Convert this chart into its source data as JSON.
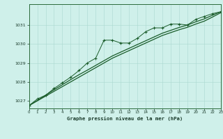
{
  "title": "Graphe pression niveau de la mer (hPa)",
  "background_color": "#cff0ea",
  "grid_color": "#aad8d0",
  "line_color": "#1a5c2a",
  "x_min": 0,
  "x_max": 23,
  "y_min": 1026.6,
  "y_max": 1032.1,
  "yticks": [
    1027,
    1028,
    1029,
    1030,
    1031
  ],
  "xticks": [
    0,
    1,
    2,
    3,
    4,
    5,
    6,
    7,
    8,
    9,
    10,
    11,
    12,
    13,
    14,
    15,
    16,
    17,
    18,
    19,
    20,
    21,
    22,
    23
  ],
  "series_main": [
    [
      0,
      1026.75
    ],
    [
      1,
      1027.1
    ],
    [
      2,
      1027.3
    ],
    [
      3,
      1027.65
    ],
    [
      4,
      1027.95
    ],
    [
      5,
      1028.25
    ],
    [
      6,
      1028.6
    ],
    [
      7,
      1029.0
    ],
    [
      8,
      1029.25
    ],
    [
      9,
      1030.2
    ],
    [
      10,
      1030.2
    ],
    [
      11,
      1030.05
    ],
    [
      12,
      1030.05
    ],
    [
      13,
      1030.3
    ],
    [
      14,
      1030.65
    ],
    [
      15,
      1030.85
    ],
    [
      16,
      1030.85
    ],
    [
      17,
      1031.05
    ],
    [
      18,
      1031.05
    ],
    [
      19,
      1031.0
    ],
    [
      20,
      1031.3
    ],
    [
      21,
      1031.45
    ],
    [
      22,
      1031.6
    ],
    [
      23,
      1031.7
    ]
  ],
  "series_smooth1": [
    [
      0,
      1026.75
    ],
    [
      1,
      1027.0
    ],
    [
      2,
      1027.25
    ],
    [
      3,
      1027.5
    ],
    [
      4,
      1027.75
    ],
    [
      5,
      1028.0
    ],
    [
      6,
      1028.25
    ],
    [
      7,
      1028.5
    ],
    [
      8,
      1028.75
    ],
    [
      9,
      1029.0
    ],
    [
      10,
      1029.25
    ],
    [
      11,
      1029.45
    ],
    [
      12,
      1029.65
    ],
    [
      13,
      1029.85
    ],
    [
      14,
      1030.05
    ],
    [
      15,
      1030.25
    ],
    [
      16,
      1030.45
    ],
    [
      17,
      1030.6
    ],
    [
      18,
      1030.75
    ],
    [
      19,
      1030.88
    ],
    [
      20,
      1031.05
    ],
    [
      21,
      1031.2
    ],
    [
      22,
      1031.42
    ],
    [
      23,
      1031.65
    ]
  ],
  "series_smooth2": [
    [
      0,
      1026.75
    ],
    [
      1,
      1027.02
    ],
    [
      2,
      1027.3
    ],
    [
      3,
      1027.58
    ],
    [
      4,
      1027.85
    ],
    [
      5,
      1028.12
    ],
    [
      6,
      1028.38
    ],
    [
      7,
      1028.62
    ],
    [
      8,
      1028.87
    ],
    [
      9,
      1029.12
    ],
    [
      10,
      1029.37
    ],
    [
      11,
      1029.57
    ],
    [
      12,
      1029.77
    ],
    [
      13,
      1029.97
    ],
    [
      14,
      1030.17
    ],
    [
      15,
      1030.37
    ],
    [
      16,
      1030.57
    ],
    [
      17,
      1030.72
    ],
    [
      18,
      1030.87
    ],
    [
      19,
      1031.0
    ],
    [
      20,
      1031.17
    ],
    [
      21,
      1031.32
    ],
    [
      22,
      1031.52
    ],
    [
      23,
      1031.7
    ]
  ]
}
